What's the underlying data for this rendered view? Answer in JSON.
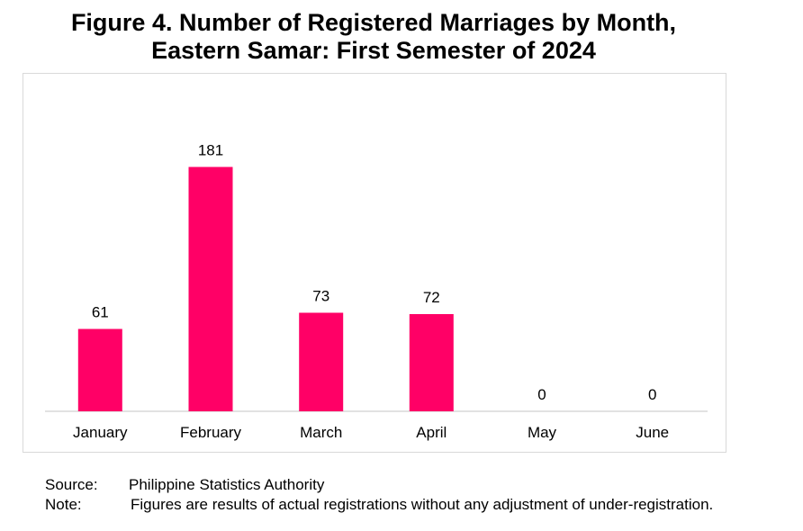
{
  "title": {
    "line1": "Figure 4. Number of Registered Marriages by Month,",
    "line2": "Eastern Samar: First Semester of 2024"
  },
  "chart_data": {
    "type": "bar",
    "categories": [
      "January",
      "February",
      "March",
      "April",
      "May",
      "June"
    ],
    "values": [
      61,
      181,
      73,
      72,
      0,
      0
    ],
    "data_labels": [
      "61",
      "181",
      "73",
      "72",
      "0",
      "0"
    ],
    "title": "Figure 4. Number of Registered Marriages by Month, Eastern Samar: First Semester of 2024",
    "xlabel": "",
    "ylabel": "",
    "ylim": [
      0,
      200
    ],
    "grid": false,
    "legend": "none",
    "bar_color": "#ff0066",
    "axis_color": "#d9d9d9"
  },
  "footnotes": {
    "source_label": "Source:",
    "source_text": "Philippine Statistics Authority",
    "note_label": "Note:",
    "note_text": "Figures are results of actual registrations without any adjustment of under-registration."
  }
}
